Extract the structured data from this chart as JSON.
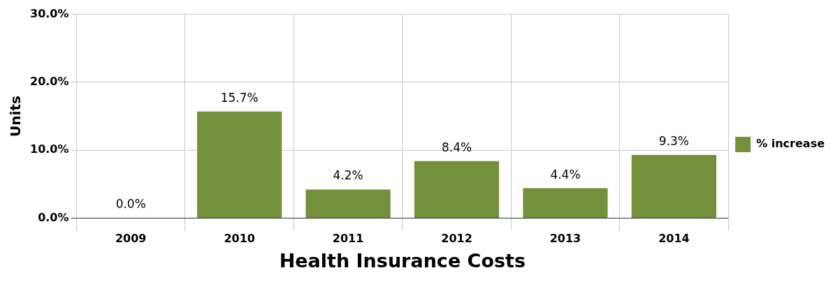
{
  "chart_data": {
    "type": "bar",
    "xlabel": "Health Insurance Costs",
    "ylabel": "Units",
    "categories": [
      "2009",
      "2010",
      "2011",
      "2012",
      "2013",
      "2014"
    ],
    "series": [
      {
        "name": "% increase",
        "color": "#74903a",
        "values": [
          0.0,
          15.7,
          4.2,
          8.4,
          4.4,
          9.3
        ],
        "value_labels": [
          "0.0%",
          "15.7%",
          "4.2%",
          "8.4%",
          "4.4%",
          "9.3%"
        ]
      }
    ],
    "ylim": [
      0,
      30
    ],
    "yticks": [
      {
        "value": 0,
        "label": "0.0%"
      },
      {
        "value": 10,
        "label": "10.0%"
      },
      {
        "value": 20,
        "label": "20.0%"
      },
      {
        "value": 30,
        "label": "30.0%"
      }
    ],
    "grid": true,
    "legend": "right"
  }
}
